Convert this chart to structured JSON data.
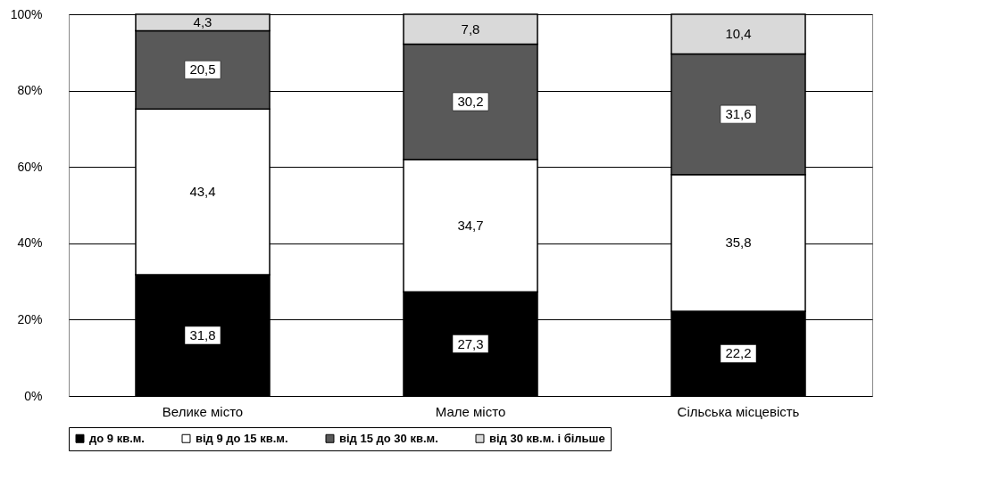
{
  "chart_data": {
    "type": "bar",
    "stacked": true,
    "categories": [
      "Велике місто",
      "Мале місто",
      "Сільська місцевість"
    ],
    "series": [
      {
        "name": "до 9 кв.м.",
        "color": "#000000",
        "values": [
          31.8,
          27.3,
          22.2
        ],
        "value_labels": [
          "31,8",
          "27,3",
          "22,2"
        ]
      },
      {
        "name": "від 9 до 15 кв.м.",
        "color": "#ffffff",
        "values": [
          43.4,
          34.7,
          35.8
        ],
        "value_labels": [
          "43,4",
          "34,7",
          "35,8"
        ]
      },
      {
        "name": "від 15 до 30 кв.м.",
        "color": "#595959",
        "values": [
          20.5,
          30.2,
          31.6
        ],
        "value_labels": [
          "20,5",
          "30,2",
          "31,6"
        ]
      },
      {
        "name": "від 30 кв.м. і більше",
        "color": "#d9d9d9",
        "values": [
          4.3,
          7.8,
          10.4
        ],
        "value_labels": [
          "4,3",
          "7,8",
          "10,4"
        ]
      }
    ],
    "ylim": [
      0,
      100
    ],
    "yticks": [
      {
        "value": 0,
        "label": "0%"
      },
      {
        "value": 20,
        "label": "20%"
      },
      {
        "value": 40,
        "label": "40%"
      },
      {
        "value": 60,
        "label": "60%"
      },
      {
        "value": 80,
        "label": "80%"
      },
      {
        "value": 100,
        "label": "100%"
      }
    ],
    "grid": "y",
    "legend": "bottom"
  }
}
